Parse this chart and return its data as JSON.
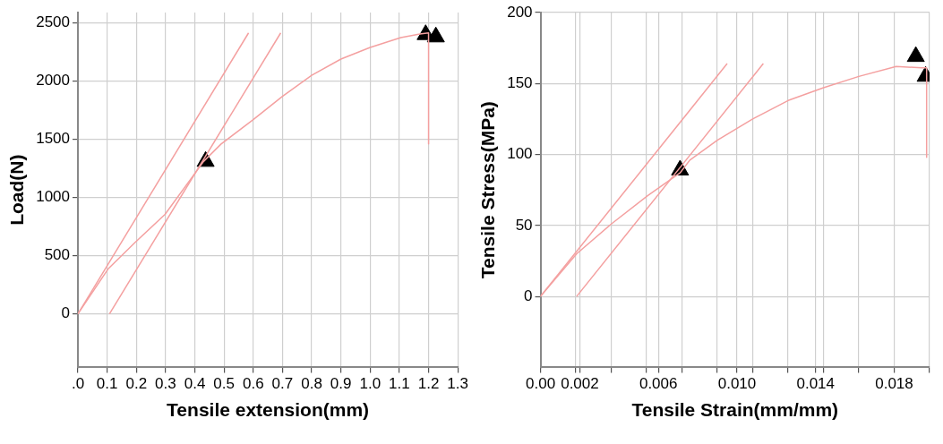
{
  "chart_data": [
    {
      "type": "line",
      "xlabel": "Tensile extension(mm)",
      "ylabel": "Load(N)",
      "xlim": [
        0,
        1.3
      ],
      "ylim": [
        -460,
        2590
      ],
      "xticks": [
        {
          "value": 0,
          "label": ".0"
        },
        0.1,
        0.2,
        0.3,
        0.4,
        0.5,
        0.6,
        0.7,
        0.8,
        0.9,
        {
          "value": 1,
          "label": "1.0"
        },
        1.1,
        1.2,
        1.3
      ],
      "yticks": [
        0,
        500,
        1000,
        1500,
        2000,
        2500
      ],
      "grid": true,
      "legend": false,
      "marker": "none",
      "line_style": "solid",
      "series": [
        {
          "type": "line",
          "color": "#f4a0a0",
          "x": [
            0,
            0.103,
            0.195,
            0.298,
            0.43,
            0.49,
            0.6,
            0.7,
            0.8,
            0.9,
            1.0,
            1.105,
            1.17,
            1.2,
            1.2
          ],
          "values": [
            0,
            385,
            612,
            855,
            1310,
            1460,
            1670,
            1870,
            2050,
            2190,
            2290,
            2375,
            2405,
            2415,
            1460
          ]
        },
        {
          "type": "line",
          "color": "#f4a0a0",
          "x": [
            0,
            0.584
          ],
          "values": [
            0,
            2415
          ]
        },
        {
          "type": "line",
          "color": "#f4a0a0",
          "x": [
            0.108,
            0.694
          ],
          "values": [
            0,
            2415
          ]
        },
        {
          "type": "scatter",
          "color": "#000000",
          "marker": "triangle",
          "x": [
            0.437,
            1.19,
            1.225
          ],
          "values": [
            1310,
            2400,
            2380
          ]
        }
      ]
    },
    {
      "type": "line",
      "xlabel": "Tensile Strain(mm/mm)",
      "ylabel": "Tensile Stress(MPa)",
      "xlim": [
        0,
        0.0198
      ],
      "ylim": [
        -50,
        200
      ],
      "xticks": [
        {
          "value": 0,
          "label": "0.00"
        },
        {
          "value": 0.0018,
          "label": null
        },
        0.002,
        {
          "value": 0.0036,
          "label": null
        },
        {
          "value": 0.0054,
          "label": null
        },
        0.006,
        {
          "value": 0.0072,
          "label": null
        },
        {
          "value": 0.009,
          "label": null
        },
        {
          "value": 0.01,
          "label": "0.010"
        },
        {
          "value": 0.0108,
          "label": null
        },
        {
          "value": 0.0126,
          "label": null
        },
        0.014,
        {
          "value": 0.0144,
          "label": null
        },
        {
          "value": 0.0162,
          "label": null
        },
        0.018,
        {
          "value": 0.0198,
          "label": null
        }
      ],
      "yticks": [
        0,
        50,
        100,
        150,
        200
      ],
      "grid": true,
      "legend": false,
      "marker": "none",
      "line_style": "solid",
      "series": [
        {
          "type": "line",
          "color": "#f4a0a0",
          "x": [
            0,
            0.00184,
            0.0036,
            0.00545,
            0.0071,
            0.0076,
            0.009,
            0.0108,
            0.0126,
            0.0144,
            0.0162,
            0.0181,
            0.0194,
            0.01965,
            0.01965
          ],
          "values": [
            0,
            30,
            51,
            71,
            87,
            96,
            110,
            125,
            138,
            147,
            155,
            162,
            161,
            161,
            98
          ]
        },
        {
          "type": "line",
          "color": "#f4a0a0",
          "x": [
            0,
            0.0095
          ],
          "values": [
            0,
            164
          ]
        },
        {
          "type": "line",
          "color": "#f4a0a0",
          "x": [
            0.00184,
            0.01134
          ],
          "values": [
            0,
            164
          ]
        },
        {
          "type": "scatter",
          "color": "#000000",
          "marker": "triangle",
          "x": [
            0.0071,
            0.0191,
            0.0196
          ],
          "values": [
            89,
            169,
            155
          ]
        }
      ]
    }
  ]
}
